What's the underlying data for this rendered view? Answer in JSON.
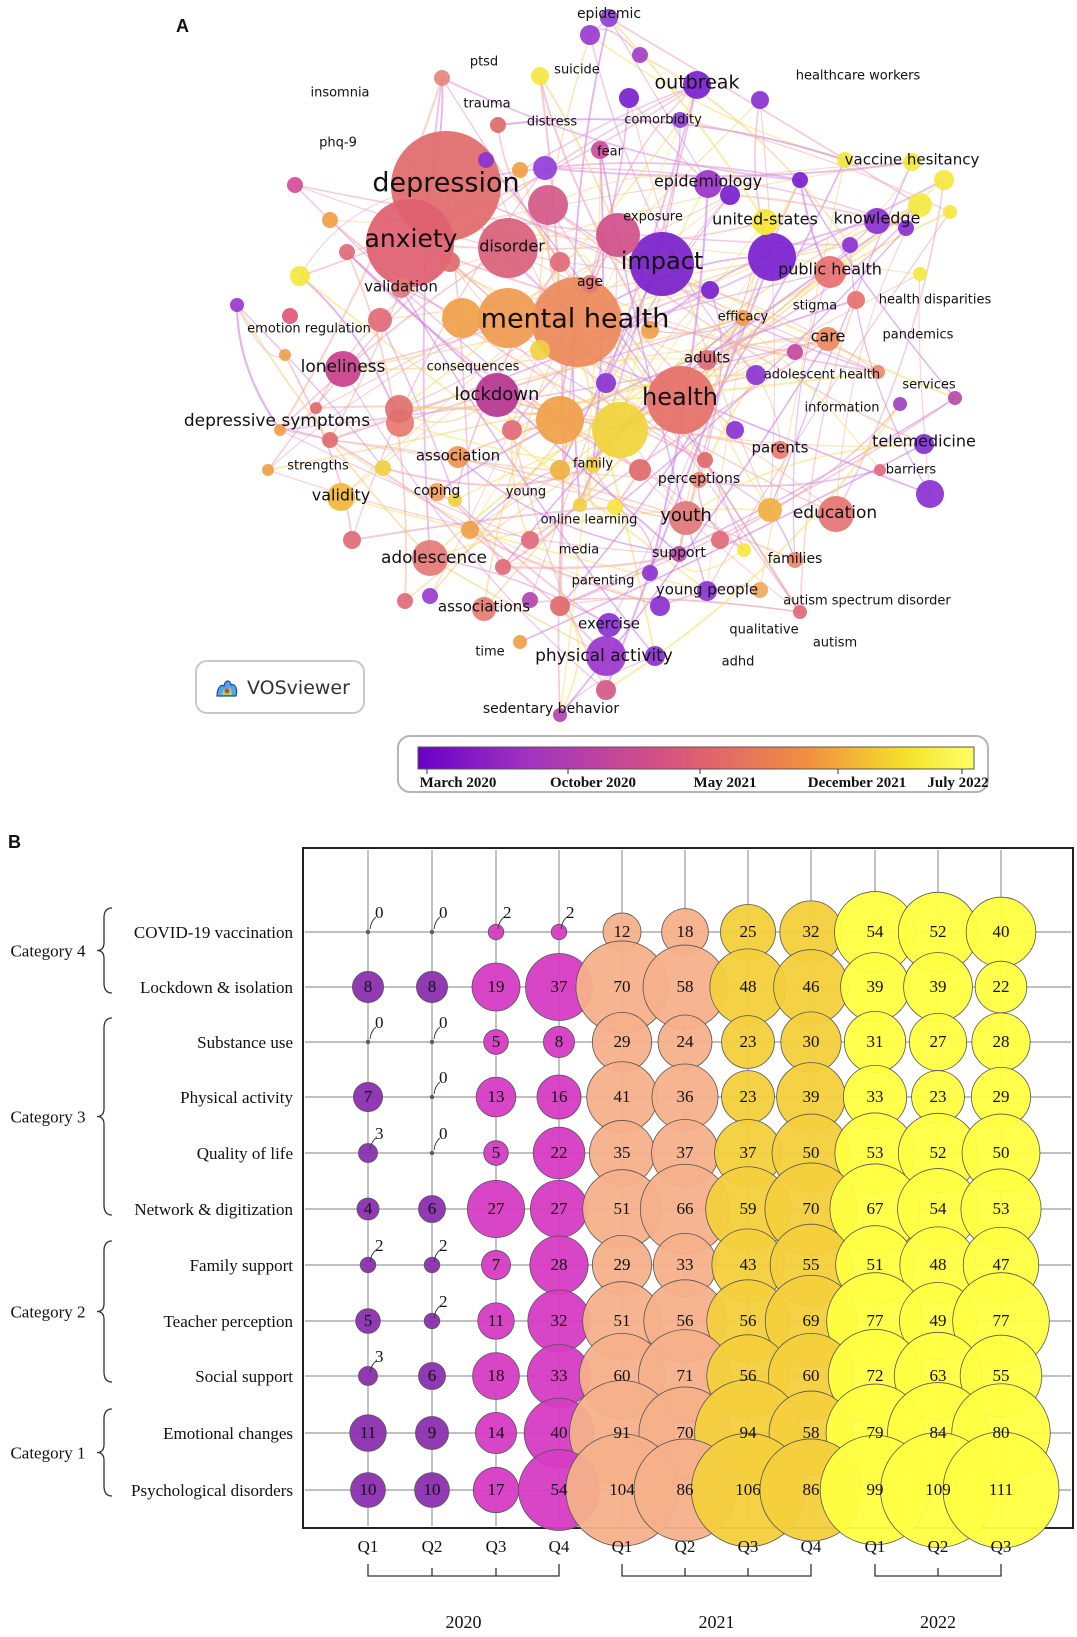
{
  "panel_a": {
    "letter": "A",
    "logo_text": "VOSviewer",
    "colorbar": {
      "labels": [
        "March 2020",
        "October 2020",
        "May 2021",
        "December 2021",
        "July 2022"
      ],
      "colors": [
        "#6a00c8",
        "#a233c0",
        "#d9527f",
        "#f28f3f",
        "#f5e32a",
        "#ffff66"
      ]
    },
    "keywords": [
      {
        "id": "epidemic",
        "label": "epidemic",
        "size": 14,
        "color": "#8f3fd8"
      },
      {
        "id": "ptsd",
        "label": "ptsd",
        "size": 13,
        "color": "#b33db0"
      },
      {
        "id": "suicide",
        "label": "suicide",
        "size": 13,
        "color": "#e58a5a"
      },
      {
        "id": "outbreak",
        "label": "outbreak",
        "size": 19,
        "color": "#7a1fd0"
      },
      {
        "id": "healthcare-workers",
        "label": "healthcare workers",
        "size": 13,
        "color": "#e6a060"
      },
      {
        "id": "insomnia",
        "label": "insomnia",
        "size": 13,
        "color": "#e0706e"
      },
      {
        "id": "trauma",
        "label": "trauma",
        "size": 13,
        "color": "#e46a6a"
      },
      {
        "id": "comorbidity",
        "label": "comorbidity",
        "size": 13,
        "color": "#9b3bcf"
      },
      {
        "id": "distress",
        "label": "distress",
        "size": 13,
        "color": "#d85a6a"
      },
      {
        "id": "phq-9",
        "label": "phq-9",
        "size": 13,
        "color": "#e07070"
      },
      {
        "id": "fear",
        "label": "fear",
        "size": 13,
        "color": "#a040c0"
      },
      {
        "id": "vaccine-hesitancy",
        "label": "vaccine hesitancy",
        "size": 15,
        "color": "#f2e940"
      },
      {
        "id": "depression",
        "label": "depression",
        "size": 27,
        "color": "#e06a6a"
      },
      {
        "id": "epidemiology",
        "label": "epidemiology",
        "size": 16,
        "color": "#9b33c8"
      },
      {
        "id": "exposure",
        "label": "exposure",
        "size": 13,
        "color": "#c84aa8"
      },
      {
        "id": "united-states",
        "label": "united-states",
        "size": 16,
        "color": "#f5e635"
      },
      {
        "id": "knowledge",
        "label": "knowledge",
        "size": 16,
        "color": "#8a30d0"
      },
      {
        "id": "anxiety",
        "label": "anxiety",
        "size": 25,
        "color": "#e06070"
      },
      {
        "id": "disorder",
        "label": "disorder",
        "size": 16,
        "color": "#d8607a"
      },
      {
        "id": "impact",
        "label": "impact",
        "size": 24,
        "color": "#7a20cc"
      },
      {
        "id": "public-health",
        "label": "public health",
        "size": 16,
        "color": "#e87070"
      },
      {
        "id": "age",
        "label": "age",
        "size": 14,
        "color": "#e47878"
      },
      {
        "id": "validation",
        "label": "validation",
        "size": 15,
        "color": "#e07a7a"
      },
      {
        "id": "stigma",
        "label": "stigma",
        "size": 13,
        "color": "#f0a050"
      },
      {
        "id": "health-disparities",
        "label": "health disparities",
        "size": 13,
        "color": "#f0e840"
      },
      {
        "id": "mental-health",
        "label": "mental health",
        "size": 27,
        "color": "#ec8a5a"
      },
      {
        "id": "efficacy",
        "label": "efficacy",
        "size": 13,
        "color": "#f09a50"
      },
      {
        "id": "emotion-regulation",
        "label": "emotion regulation",
        "size": 13,
        "color": "#e97a6a"
      },
      {
        "id": "care",
        "label": "care",
        "size": 16,
        "color": "#ec8a60"
      },
      {
        "id": "pandemics",
        "label": "pandemics",
        "size": 13,
        "color": "#a33ab0"
      },
      {
        "id": "adults",
        "label": "adults",
        "size": 15,
        "color": "#e06a78"
      },
      {
        "id": "loneliness",
        "label": "loneliness",
        "size": 17,
        "color": "#c83f8c"
      },
      {
        "id": "consequences",
        "label": "consequences",
        "size": 13,
        "color": "#f0a048"
      },
      {
        "id": "adolescent-health",
        "label": "adolescent health",
        "size": 13,
        "color": "#c24aa0"
      },
      {
        "id": "services",
        "label": "services",
        "size": 13,
        "color": "#a040c0"
      },
      {
        "id": "lockdown",
        "label": "lockdown",
        "size": 18,
        "color": "#b5358f"
      },
      {
        "id": "health",
        "label": "health",
        "size": 24,
        "color": "#e57068"
      },
      {
        "id": "information",
        "label": "information",
        "size": 13,
        "color": "#f0b040"
      },
      {
        "id": "depressive-symptoms",
        "label": "depressive symptoms",
        "size": 17,
        "color": "#e87a70"
      },
      {
        "id": "telemedicine",
        "label": "telemedicine",
        "size": 16,
        "color": "#8030d0"
      },
      {
        "id": "parents",
        "label": "parents",
        "size": 15,
        "color": "#e87c70"
      },
      {
        "id": "association",
        "label": "association",
        "size": 15,
        "color": "#ef9450"
      },
      {
        "id": "strengths",
        "label": "strengths",
        "size": 13,
        "color": "#f0b040"
      },
      {
        "id": "barriers",
        "label": "barriers",
        "size": 13,
        "color": "#dd6580"
      },
      {
        "id": "family",
        "label": "family",
        "size": 13,
        "color": "#f0d040"
      },
      {
        "id": "perceptions",
        "label": "perceptions",
        "size": 14,
        "color": "#e8847a"
      },
      {
        "id": "validity",
        "label": "validity",
        "size": 16,
        "color": "#f2b63a"
      },
      {
        "id": "coping",
        "label": "coping",
        "size": 14,
        "color": "#f0a050"
      },
      {
        "id": "young",
        "label": "young",
        "size": 13,
        "color": "#9a3ac8"
      },
      {
        "id": "online-learning",
        "label": "online learning",
        "size": 13,
        "color": "#f0d448"
      },
      {
        "id": "youth",
        "label": "youth",
        "size": 18,
        "color": "#e07878"
      },
      {
        "id": "education",
        "label": "education",
        "size": 17,
        "color": "#e47472"
      },
      {
        "id": "media",
        "label": "media",
        "size": 13,
        "color": "#c24aa0"
      },
      {
        "id": "support",
        "label": "support",
        "size": 14,
        "color": "#b74aa8"
      },
      {
        "id": "families",
        "label": "families",
        "size": 14,
        "color": "#e88870"
      },
      {
        "id": "adolescence",
        "label": "adolescence",
        "size": 17,
        "color": "#e47a76"
      },
      {
        "id": "parenting",
        "label": "parenting",
        "size": 13,
        "color": "#c849a0"
      },
      {
        "id": "young-people",
        "label": "young people",
        "size": 15,
        "color": "#8a34d0"
      },
      {
        "id": "autism-spectrum-disorder",
        "label": "autism spectrum disorder",
        "size": 13,
        "color": "#f0a860"
      },
      {
        "id": "associations",
        "label": "associations",
        "size": 15,
        "color": "#e47c74"
      },
      {
        "id": "exercise",
        "label": "exercise",
        "size": 15,
        "color": "#8a30d0"
      },
      {
        "id": "qualitative",
        "label": "qualitative",
        "size": 13,
        "color": "#f5e640"
      },
      {
        "id": "autism",
        "label": "autism",
        "size": 13,
        "color": "#e7807a"
      },
      {
        "id": "time",
        "label": "time",
        "size": 13,
        "color": "#e06a6a"
      },
      {
        "id": "physical-activity",
        "label": "physical activity",
        "size": 17,
        "color": "#9b35cc"
      },
      {
        "id": "adhd",
        "label": "adhd",
        "size": 13,
        "color": "#f2e040"
      },
      {
        "id": "sedentary-behavior",
        "label": "sedentary behavior",
        "size": 14,
        "color": "#b245b0"
      }
    ]
  },
  "panel_b": {
    "letter": "B",
    "chart_data": {
      "type": "bubble",
      "title": "",
      "rows": [
        "COVID-19 vaccination",
        "Lockdown & isolation",
        "Substance use",
        "Physical activity",
        "Quality of life",
        "Network & digitization",
        "Family support",
        "Teacher perception",
        "Social support",
        "Emotional changes",
        "Psychological disorders"
      ],
      "categories": [
        {
          "label": "Category 4",
          "rows": [
            "COVID-19 vaccination",
            "Lockdown & isolation"
          ]
        },
        {
          "label": "Category 3",
          "rows": [
            "Substance use",
            "Physical activity",
            "Quality of life",
            "Network & digitization"
          ]
        },
        {
          "label": "Category 2",
          "rows": [
            "Family support",
            "Teacher perception",
            "Social support"
          ]
        },
        {
          "label": "Category 1",
          "rows": [
            "Emotional changes",
            "Psychological disorders"
          ]
        }
      ],
      "columns": [
        "Q1",
        "Q2",
        "Q3",
        "Q4",
        "Q1",
        "Q2",
        "Q3",
        "Q4",
        "Q1",
        "Q2",
        "Q3"
      ],
      "years": [
        {
          "label": "2020",
          "columns": [
            0,
            3
          ]
        },
        {
          "label": "2021",
          "columns": [
            4,
            7
          ]
        },
        {
          "label": "2022",
          "columns": [
            8,
            10
          ]
        }
      ],
      "period_colors": [
        "#8c2fb0",
        "#8c2fb0",
        "#d63cc4",
        "#d63cc4",
        "#f5b08a",
        "#f5b08a",
        "#f4cf3c",
        "#f4cf3c",
        "#ffff42",
        "#ffff42",
        "#ffff42"
      ],
      "values": [
        [
          0,
          0,
          2,
          2,
          12,
          18,
          25,
          32,
          54,
          52,
          40
        ],
        [
          8,
          8,
          19,
          37,
          70,
          58,
          48,
          46,
          39,
          39,
          22
        ],
        [
          0,
          0,
          5,
          8,
          29,
          24,
          23,
          30,
          31,
          27,
          28
        ],
        [
          7,
          0,
          13,
          16,
          41,
          36,
          23,
          39,
          33,
          23,
          29
        ],
        [
          3,
          0,
          5,
          22,
          35,
          37,
          37,
          50,
          53,
          52,
          50
        ],
        [
          4,
          6,
          27,
          27,
          51,
          66,
          59,
          70,
          67,
          54,
          53
        ],
        [
          2,
          2,
          7,
          28,
          29,
          33,
          43,
          55,
          51,
          48,
          47
        ],
        [
          5,
          2,
          11,
          32,
          51,
          56,
          56,
          69,
          77,
          49,
          77
        ],
        [
          3,
          6,
          18,
          33,
          60,
          71,
          56,
          60,
          72,
          63,
          55
        ],
        [
          11,
          9,
          14,
          40,
          91,
          70,
          94,
          58,
          79,
          84,
          80
        ],
        [
          10,
          10,
          17,
          54,
          104,
          86,
          106,
          86,
          99,
          109,
          111
        ]
      ]
    }
  }
}
